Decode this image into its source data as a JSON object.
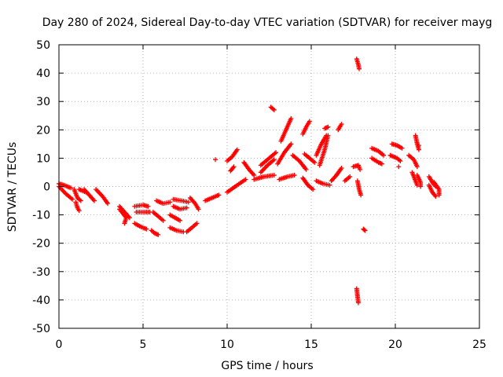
{
  "chart_data": {
    "type": "scatter",
    "title": "Day 280 of 2024, Sidereal Day-to-day VTEC variation (SDTVAR) for receiver mayg",
    "xlabel": "GPS time / hours",
    "ylabel": "SDTVAR / TECUs",
    "xlim": [
      0,
      25
    ],
    "ylim": [
      -50,
      50
    ],
    "grid": true,
    "marker": "plus",
    "color": "#ff0000",
    "xticks": [
      0,
      5,
      10,
      15,
      20,
      25
    ],
    "yticks": [
      -50,
      -40,
      -30,
      -20,
      -10,
      0,
      10,
      20,
      30,
      40,
      50
    ],
    "series": [
      {
        "name": "SDTVAR",
        "tracks": [
          [
            [
              0.0,
              1.0
            ],
            [
              0.3,
              0.5
            ],
            [
              0.7,
              -0.5
            ]
          ],
          [
            [
              0.0,
              0.0
            ],
            [
              0.4,
              -2.5
            ],
            [
              0.8,
              -4.5
            ]
          ],
          [
            [
              0.9,
              -1.0
            ],
            [
              1.1,
              -4.0
            ],
            [
              1.3,
              -5.0
            ]
          ],
          [
            [
              1.0,
              -5.5
            ],
            [
              1.1,
              -7.5
            ],
            [
              1.2,
              -8.5
            ]
          ],
          [
            [
              1.2,
              -1.0
            ],
            [
              1.6,
              -2.0
            ]
          ],
          [
            [
              1.5,
              -1.0
            ],
            [
              1.8,
              -3.0
            ],
            [
              2.1,
              -5.0
            ]
          ],
          [
            [
              2.2,
              -1.0
            ],
            [
              2.6,
              -3.5
            ],
            [
              2.9,
              -6.0
            ]
          ],
          [
            [
              3.6,
              -7.0
            ],
            [
              3.9,
              -9.0
            ],
            [
              4.2,
              -11.0
            ]
          ],
          [
            [
              3.6,
              -8.0
            ],
            [
              4.0,
              -11.0
            ],
            [
              3.9,
              -13.0
            ]
          ],
          [
            [
              4.5,
              -7.0
            ],
            [
              5.0,
              -6.5
            ],
            [
              5.3,
              -7.0
            ]
          ],
          [
            [
              4.6,
              -9.0
            ],
            [
              5.0,
              -9.0
            ],
            [
              5.4,
              -9.0
            ]
          ],
          [
            [
              4.5,
              -13.0
            ],
            [
              4.8,
              -14.0
            ],
            [
              5.2,
              -15.0
            ]
          ],
          [
            [
              5.8,
              -5.0
            ],
            [
              6.2,
              -6.0
            ],
            [
              6.6,
              -5.5
            ]
          ],
          [
            [
              5.6,
              -9.0
            ],
            [
              5.9,
              -10.5
            ],
            [
              6.2,
              -12.0
            ]
          ],
          [
            [
              5.5,
              -15.5
            ],
            [
              5.7,
              -16.5
            ],
            [
              5.9,
              -17.0
            ]
          ],
          [
            [
              6.8,
              -4.5
            ],
            [
              7.3,
              -5.0
            ],
            [
              7.7,
              -5.5
            ]
          ],
          [
            [
              6.8,
              -7.0
            ],
            [
              7.2,
              -8.0
            ],
            [
              7.6,
              -7.5
            ]
          ],
          [
            [
              6.6,
              -10.0
            ],
            [
              6.9,
              -11.0
            ],
            [
              7.2,
              -12.0
            ]
          ],
          [
            [
              6.6,
              -14.5
            ],
            [
              7.0,
              -15.5
            ],
            [
              7.4,
              -16.0
            ]
          ],
          [
            [
              7.8,
              -4.0
            ],
            [
              8.1,
              -6.0
            ],
            [
              8.3,
              -8.0
            ]
          ],
          [
            [
              7.6,
              -16.0
            ],
            [
              7.9,
              -14.5
            ],
            [
              8.2,
              -13.0
            ]
          ],
          [
            [
              8.7,
              -5.0
            ],
            [
              9.1,
              -4.0
            ],
            [
              9.5,
              -3.0
            ]
          ],
          [
            [
              9.3,
              9.5
            ]
          ],
          [
            [
              10.0,
              -2.0
            ],
            [
              10.6,
              0.5
            ],
            [
              11.1,
              2.5
            ]
          ],
          [
            [
              10.0,
              9.0
            ],
            [
              10.3,
              10.5
            ],
            [
              10.6,
              13.0
            ]
          ],
          [
            [
              10.2,
              5.5
            ],
            [
              10.4,
              7.0
            ]
          ],
          [
            [
              11.0,
              8.5
            ],
            [
              11.3,
              6.0
            ],
            [
              11.6,
              4.0
            ]
          ],
          [
            [
              11.6,
              2.5
            ],
            [
              12.2,
              3.5
            ],
            [
              12.8,
              4.0
            ]
          ],
          [
            [
              12.0,
              5.0
            ],
            [
              12.4,
              7.5
            ],
            [
              12.8,
              9.5
            ]
          ],
          [
            [
              12.0,
              7.5
            ],
            [
              12.5,
              10.0
            ],
            [
              12.9,
              12.0
            ]
          ],
          [
            [
              12.6,
              28.0
            ],
            [
              12.8,
              27.0
            ]
          ],
          [
            [
              13.0,
              8.0
            ],
            [
              13.4,
              12.0
            ],
            [
              13.8,
              15.0
            ]
          ],
          [
            [
              13.2,
              16.0
            ],
            [
              13.5,
              20.0
            ],
            [
              13.8,
              24.0
            ]
          ],
          [
            [
              13.1,
              2.5
            ],
            [
              13.6,
              3.5
            ],
            [
              14.0,
              4.0
            ]
          ],
          [
            [
              13.9,
              11.0
            ],
            [
              14.3,
              9.0
            ],
            [
              14.7,
              6.0
            ]
          ],
          [
            [
              14.5,
              18.5
            ],
            [
              14.7,
              21.0
            ],
            [
              14.9,
              23.0
            ]
          ],
          [
            [
              14.6,
              11.5
            ],
            [
              14.9,
              10.0
            ],
            [
              15.2,
              8.5
            ]
          ],
          [
            [
              14.5,
              3.0
            ],
            [
              14.8,
              0.5
            ],
            [
              15.1,
              -1.0
            ]
          ],
          [
            [
              15.5,
              7.5
            ],
            [
              15.8,
              13.0
            ],
            [
              16.0,
              18.0
            ]
          ],
          [
            [
              15.3,
              11.0
            ],
            [
              15.6,
              15.0
            ],
            [
              15.9,
              18.0
            ]
          ],
          [
            [
              15.3,
              2.0
            ],
            [
              15.7,
              1.0
            ],
            [
              16.1,
              0.5
            ]
          ],
          [
            [
              15.8,
              20.5
            ],
            [
              16.0,
              21.0
            ]
          ],
          [
            [
              16.6,
              20.0
            ],
            [
              16.8,
              22.0
            ]
          ],
          [
            [
              16.2,
              2.0
            ],
            [
              16.5,
              4.0
            ],
            [
              16.8,
              6.5
            ]
          ],
          [
            [
              17.0,
              2.0
            ],
            [
              17.3,
              3.5
            ]
          ],
          [
            [
              17.5,
              7.0
            ],
            [
              17.8,
              7.5
            ],
            [
              17.9,
              6.0
            ]
          ],
          [
            [
              17.75,
              2.0
            ],
            [
              17.85,
              -1.0
            ],
            [
              17.95,
              -3.0
            ]
          ],
          [
            [
              17.7,
              45.0
            ],
            [
              17.8,
              43.0
            ],
            [
              17.85,
              41.5
            ]
          ],
          [
            [
              17.7,
              -36.0
            ],
            [
              17.75,
              -38.5
            ],
            [
              17.8,
              -41.0
            ]
          ],
          [
            [
              18.1,
              -15.0
            ],
            [
              18.2,
              -15.5
            ]
          ],
          [
            [
              18.6,
              13.5
            ],
            [
              19.0,
              12.5
            ],
            [
              19.3,
              11.0
            ]
          ],
          [
            [
              18.6,
              10.0
            ],
            [
              19.0,
              8.5
            ],
            [
              19.2,
              8.0
            ]
          ],
          [
            [
              19.8,
              15.0
            ],
            [
              20.1,
              14.5
            ],
            [
              20.4,
              13.5
            ]
          ],
          [
            [
              19.7,
              11.0
            ],
            [
              20.1,
              10.0
            ],
            [
              20.3,
              9.0
            ]
          ],
          [
            [
              20.2,
              7.0
            ]
          ],
          [
            [
              20.8,
              11.0
            ],
            [
              21.1,
              9.5
            ],
            [
              21.3,
              7.0
            ]
          ],
          [
            [
              21.0,
              5.0
            ],
            [
              21.1,
              3.5
            ],
            [
              21.3,
              0.5
            ]
          ],
          [
            [
              21.2,
              18.0
            ],
            [
              21.3,
              15.0
            ],
            [
              21.4,
              13.0
            ]
          ],
          [
            [
              21.4,
              14.5
            ]
          ],
          [
            [
              21.3,
              4.0
            ],
            [
              21.5,
              1.5
            ],
            [
              21.5,
              0.0
            ]
          ],
          [
            [
              22.0,
              3.5
            ],
            [
              22.2,
              1.5
            ],
            [
              22.4,
              0.0
            ]
          ],
          [
            [
              22.0,
              0.5
            ],
            [
              22.2,
              -2.0
            ],
            [
              22.4,
              -3.5
            ]
          ],
          [
            [
              22.3,
              1.5
            ],
            [
              22.6,
              -1.0
            ],
            [
              22.6,
              -3.0
            ]
          ]
        ]
      }
    ]
  }
}
